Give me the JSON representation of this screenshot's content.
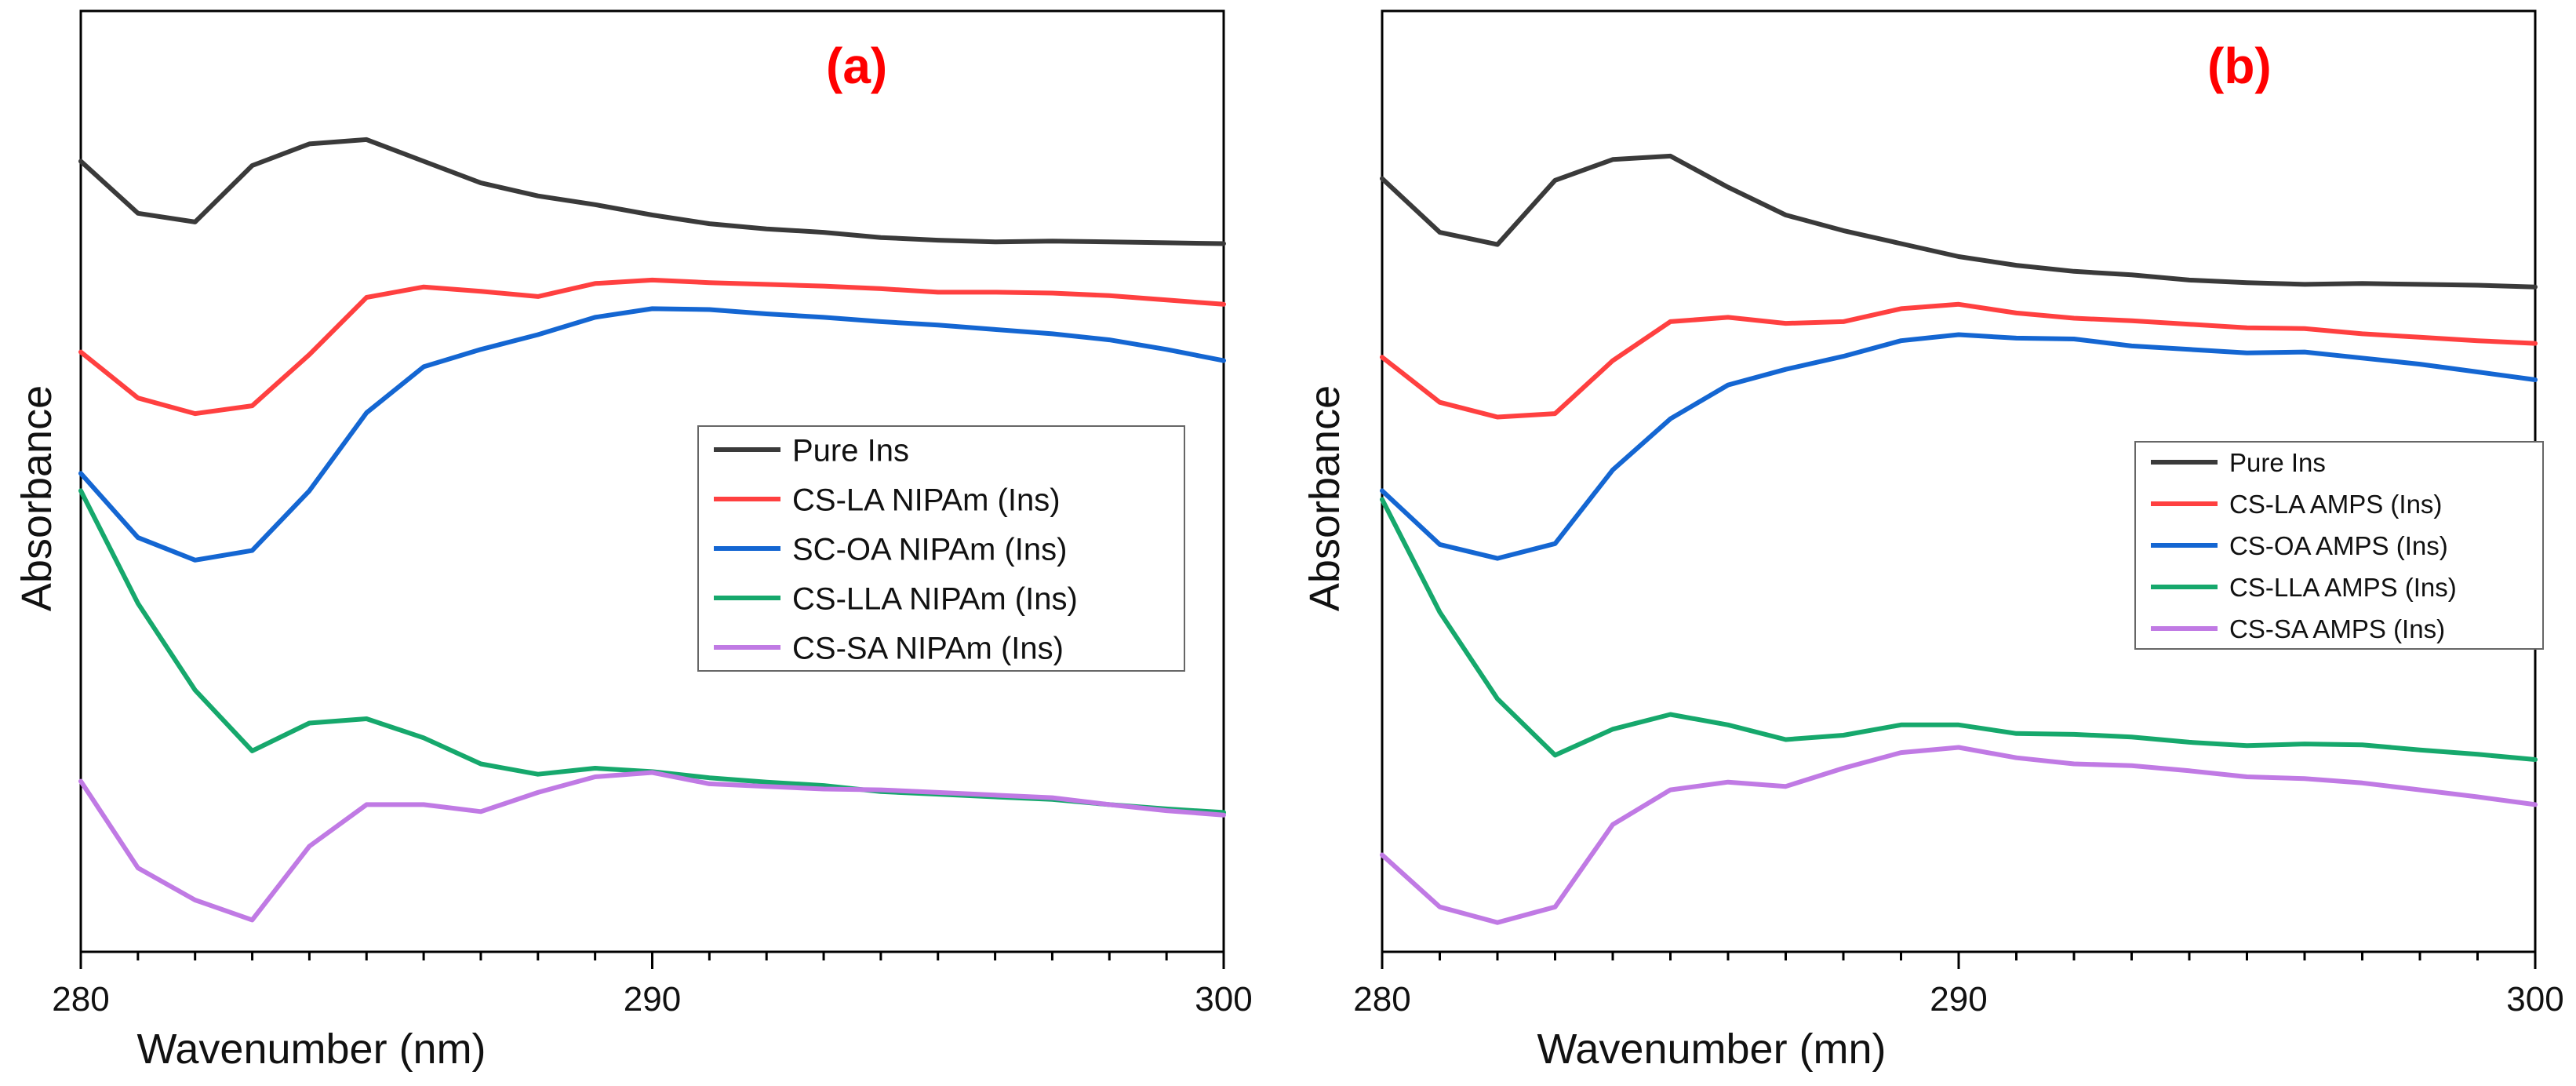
{
  "chart_data": [
    {
      "type": "line",
      "panel_label": "(a)",
      "title": "",
      "xlabel": "Wavenumber (nm)",
      "ylabel": "Absorbance",
      "xlim": [
        280,
        300
      ],
      "ylim": [
        0,
        1
      ],
      "xticks": [
        "280",
        "290",
        "300"
      ],
      "y_tick_labels": false,
      "legend_position": "center-right",
      "x": [
        280,
        281,
        282,
        283,
        284,
        285,
        286,
        287,
        288,
        289,
        290,
        291,
        292,
        293,
        294,
        295,
        296,
        297,
        298,
        299,
        300
      ],
      "series": [
        {
          "name": "Pure Ins",
          "color": "#3a3a3a",
          "values": [
            0.9,
            0.84,
            0.83,
            0.895,
            0.92,
            0.925,
            0.9,
            0.875,
            0.86,
            0.85,
            0.838,
            0.828,
            0.822,
            0.818,
            0.812,
            0.809,
            0.807,
            0.808,
            0.807,
            0.806,
            0.805
          ]
        },
        {
          "name": "CS-LA NIPAm (Ins)",
          "color": "#ff4040",
          "values": [
            0.68,
            0.627,
            0.609,
            0.618,
            0.677,
            0.743,
            0.755,
            0.75,
            0.744,
            0.759,
            0.763,
            0.76,
            0.758,
            0.756,
            0.753,
            0.749,
            0.749,
            0.748,
            0.745,
            0.74,
            0.735
          ]
        },
        {
          "name": "SC-OA NIPAm (Ins)",
          "color": "#1466d2",
          "values": [
            0.54,
            0.466,
            0.44,
            0.451,
            0.52,
            0.61,
            0.663,
            0.683,
            0.7,
            0.72,
            0.73,
            0.729,
            0.724,
            0.72,
            0.715,
            0.711,
            0.706,
            0.701,
            0.694,
            0.683,
            0.67
          ]
        },
        {
          "name": "CS-LLA NIPAm (Ins)",
          "color": "#16a86c",
          "values": [
            0.52,
            0.39,
            0.29,
            0.22,
            0.252,
            0.257,
            0.235,
            0.205,
            0.193,
            0.2,
            0.196,
            0.189,
            0.184,
            0.18,
            0.173,
            0.17,
            0.167,
            0.164,
            0.158,
            0.153,
            0.149
          ]
        },
        {
          "name": "CS-SA NIPAm (Ins)",
          "color": "#c07ae4",
          "values": [
            0.185,
            0.085,
            0.048,
            0.025,
            0.11,
            0.158,
            0.158,
            0.15,
            0.172,
            0.19,
            0.195,
            0.182,
            0.179,
            0.176,
            0.175,
            0.172,
            0.169,
            0.166,
            0.158,
            0.151,
            0.146
          ]
        }
      ]
    },
    {
      "type": "line",
      "panel_label": "(b)",
      "title": "",
      "xlabel": "Wavenumber (mn)",
      "ylabel": "Absorbance",
      "xlim": [
        280,
        300
      ],
      "ylim": [
        0,
        1
      ],
      "xticks": [
        "280",
        "290",
        "300"
      ],
      "y_tick_labels": false,
      "legend_position": "center-right",
      "x": [
        280,
        281,
        282,
        283,
        284,
        285,
        286,
        287,
        288,
        289,
        290,
        291,
        292,
        293,
        294,
        295,
        296,
        297,
        298,
        299,
        300
      ],
      "series": [
        {
          "name": "Pure Ins",
          "color": "#3a3a3a",
          "values": [
            0.88,
            0.818,
            0.804,
            0.878,
            0.902,
            0.906,
            0.87,
            0.838,
            0.82,
            0.805,
            0.79,
            0.78,
            0.773,
            0.769,
            0.763,
            0.76,
            0.758,
            0.759,
            0.758,
            0.757,
            0.755
          ]
        },
        {
          "name": "CS-LA AMPS (Ins)",
          "color": "#ff4040",
          "values": [
            0.674,
            0.622,
            0.605,
            0.609,
            0.67,
            0.715,
            0.72,
            0.713,
            0.715,
            0.73,
            0.735,
            0.725,
            0.719,
            0.716,
            0.712,
            0.708,
            0.707,
            0.701,
            0.697,
            0.693,
            0.69
          ]
        },
        {
          "name": "CS-OA AMPS (Ins)",
          "color": "#1466d2",
          "values": [
            0.52,
            0.458,
            0.442,
            0.459,
            0.544,
            0.603,
            0.642,
            0.66,
            0.675,
            0.693,
            0.7,
            0.696,
            0.695,
            0.687,
            0.683,
            0.679,
            0.68,
            0.673,
            0.666,
            0.657,
            0.648
          ]
        },
        {
          "name": "CS-LLA AMPS (Ins)",
          "color": "#16a86c",
          "values": [
            0.51,
            0.38,
            0.28,
            0.215,
            0.245,
            0.262,
            0.25,
            0.233,
            0.238,
            0.25,
            0.25,
            0.24,
            0.239,
            0.236,
            0.23,
            0.226,
            0.228,
            0.227,
            0.221,
            0.216,
            0.21
          ]
        },
        {
          "name": "CS-SA AMPS (Ins)",
          "color": "#c07ae4",
          "values": [
            0.1,
            0.04,
            0.022,
            0.04,
            0.135,
            0.175,
            0.184,
            0.179,
            0.2,
            0.218,
            0.224,
            0.212,
            0.205,
            0.203,
            0.197,
            0.19,
            0.188,
            0.183,
            0.175,
            0.167,
            0.158
          ]
        }
      ]
    }
  ]
}
